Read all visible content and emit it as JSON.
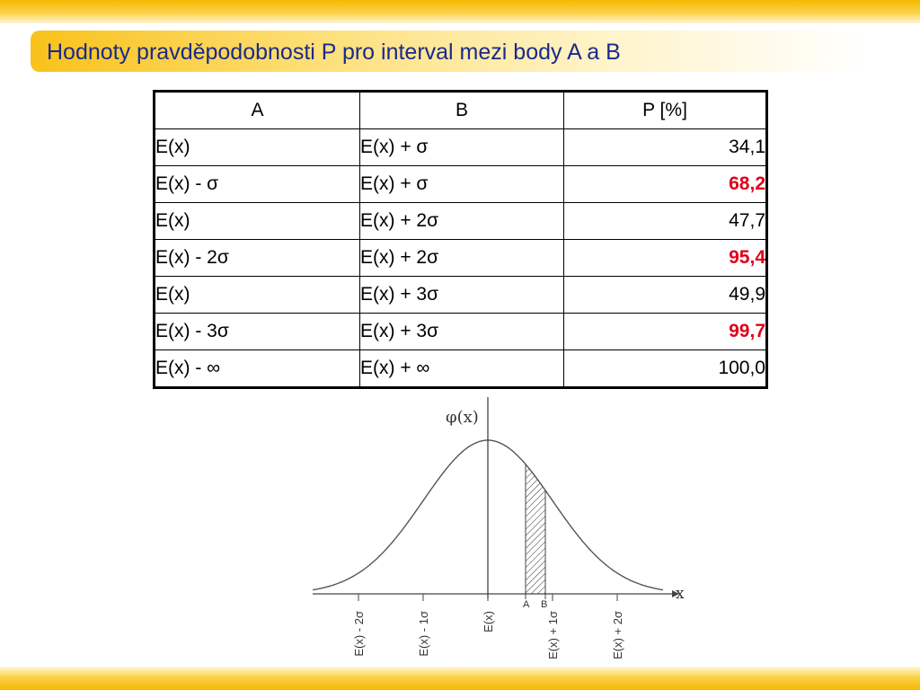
{
  "title": "Hodnoty pravděpodobnosti P pro interval mezi body A a B",
  "table": {
    "headers": {
      "a": "A",
      "b": "B",
      "p": "P [%]"
    },
    "rows": [
      {
        "a": "E(x)",
        "b": "E(x) + σ",
        "p": "34,1",
        "highlight": false
      },
      {
        "a": "E(x) - σ",
        "b": "E(x) + σ",
        "p": "68,2",
        "highlight": true
      },
      {
        "a": "E(x)",
        "b": "E(x) + 2σ",
        "p": "47,7",
        "highlight": false
      },
      {
        "a": "E(x) - 2σ",
        "b": "E(x) + 2σ",
        "p": "95,4",
        "highlight": true
      },
      {
        "a": "E(x)",
        "b": "E(x) + 3σ",
        "p": "49,9",
        "highlight": false
      },
      {
        "a": "E(x) - 3σ",
        "b": "E(x) + 3σ",
        "p": "99,7",
        "highlight": true
      },
      {
        "a": "E(x) - ∞",
        "b": "E(x) + ∞",
        "p": "100,0",
        "highlight": false
      }
    ]
  },
  "graph": {
    "y_label": "φ(x)",
    "x_label": "x",
    "point_a": "A",
    "point_b": "B",
    "tick_labels": [
      "E(x) - 2σ",
      "E(x) - 1σ",
      "E(x)",
      "E(x) + 1σ",
      "E(x) + 2σ"
    ],
    "colors": {
      "highlight": "#e0001b",
      "title": "#1b2a8a",
      "accent": "#f6b800"
    }
  }
}
